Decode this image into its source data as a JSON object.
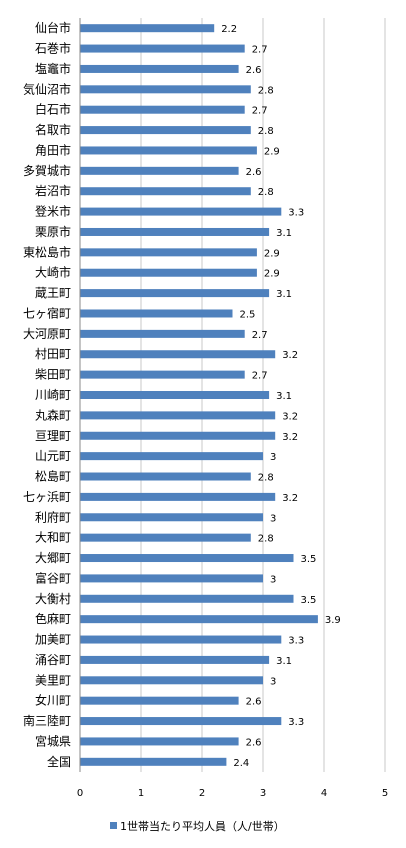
{
  "chart_data": {
    "type": "bar",
    "orientation": "horizontal",
    "categories": [
      "仙台市",
      "石巻市",
      "塩竈市",
      "気仙沼市",
      "白石市",
      "名取市",
      "角田市",
      "多賀城市",
      "岩沼市",
      "登米市",
      "栗原市",
      "東松島市",
      "大崎市",
      "蔵王町",
      "七ヶ宿町",
      "大河原町",
      "村田町",
      "柴田町",
      "川崎町",
      "丸森町",
      "亘理町",
      "山元町",
      "松島町",
      "七ヶ浜町",
      "利府町",
      "大和町",
      "大郷町",
      "富谷町",
      "大衡村",
      "色麻町",
      "加美町",
      "涌谷町",
      "美里町",
      "女川町",
      "南三陸町",
      "宮城県",
      "全国"
    ],
    "series": [
      {
        "name": "1世帯当たり平均人員（人/世帯）",
        "values": [
          2.2,
          2.7,
          2.6,
          2.8,
          2.7,
          2.8,
          2.9,
          2.6,
          2.8,
          3.3,
          3.1,
          2.9,
          2.9,
          3.1,
          2.5,
          2.7,
          3.2,
          2.7,
          3.1,
          3.2,
          3.2,
          3,
          2.8,
          3.2,
          3,
          2.8,
          3.5,
          3,
          3.5,
          3.9,
          3.3,
          3.1,
          3,
          2.6,
          3.3,
          2.6,
          2.4
        ],
        "labels": [
          "2.2",
          "2.7",
          "2.6",
          "2.8",
          "2.7",
          "2.8",
          "2.9",
          "2.6",
          "2.8",
          "3.3",
          "3.1",
          "2.9",
          "2.9",
          "3.1",
          "2.5",
          "2.7",
          "3.2",
          "2.7",
          "3.1",
          "3.2",
          "3.2",
          "3",
          "2.8",
          "3.2",
          "3",
          "2.8",
          "3.5",
          "3",
          "3.5",
          "3.9",
          "3.3",
          "3.1",
          "3",
          "2.6",
          "3.3",
          "2.6",
          "2.4"
        ]
      }
    ],
    "xlim": [
      0,
      5
    ],
    "xticks": [
      "0",
      "1",
      "2",
      "3",
      "4",
      "5"
    ],
    "grid": true,
    "legend_position": "bottom",
    "bar_color": "#4f81bd"
  }
}
